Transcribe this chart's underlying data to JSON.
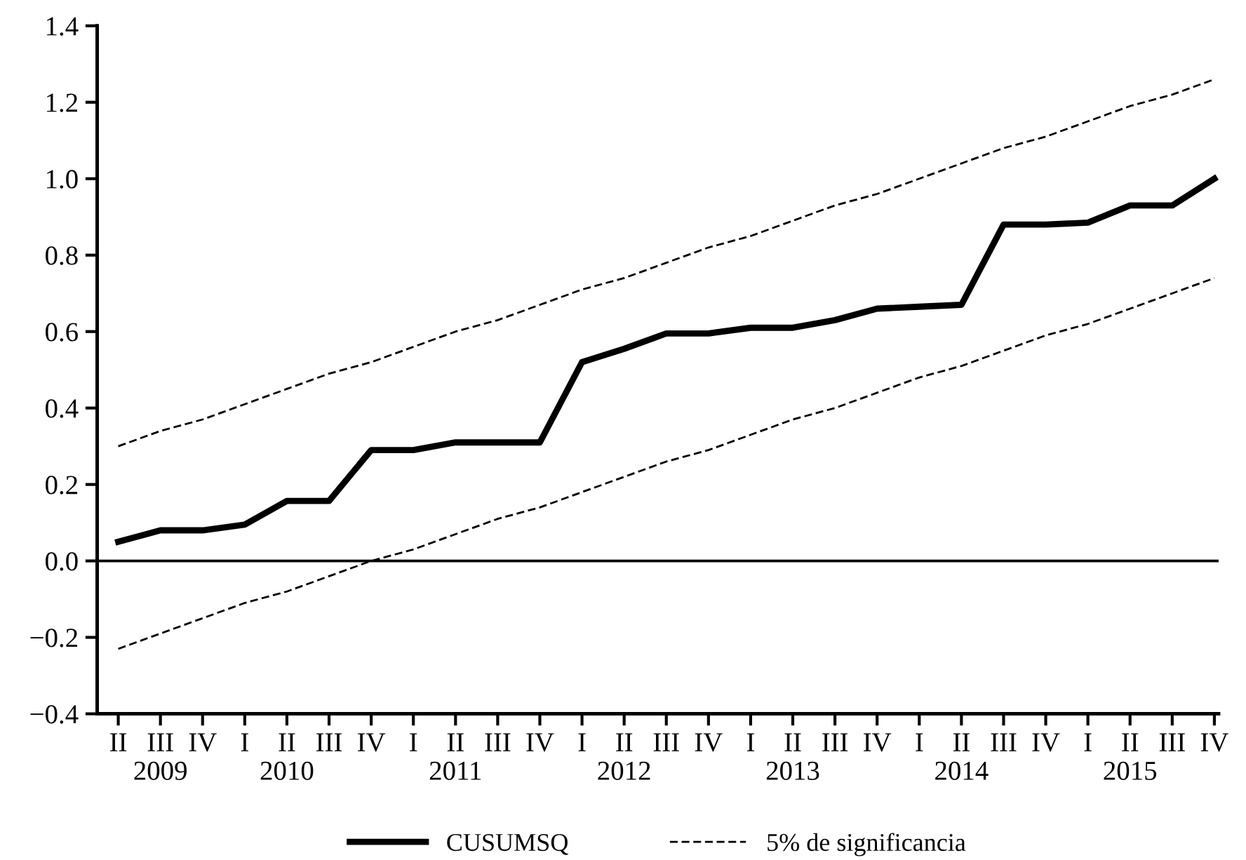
{
  "chart_data": {
    "type": "line",
    "categories": [
      "II",
      "III\n2009",
      "IV",
      "I",
      "II\n2010",
      "III",
      "IV",
      "I",
      "II\n2011",
      "III",
      "IV",
      "I",
      "II\n2012",
      "III",
      "IV",
      "I",
      "II\n2013",
      "III",
      "IV",
      "I",
      "II\n2014",
      "III",
      "IV",
      "I",
      "II\n2015",
      "III",
      "IV"
    ],
    "series": [
      {
        "name": "CUSUMSQ",
        "color": "#000000",
        "line_style": "solid",
        "values": [
          0.05,
          0.08,
          0.08,
          0.095,
          0.157,
          0.157,
          0.29,
          0.29,
          0.31,
          0.31,
          0.31,
          0.52,
          0.555,
          0.595,
          0.595,
          0.61,
          0.61,
          0.63,
          0.66,
          0.665,
          0.67,
          0.88,
          0.88,
          0.885,
          0.93,
          0.93,
          1.0
        ]
      },
      {
        "name": "5% de significancia",
        "color": "#000000",
        "line_style": "dashed",
        "values": [
          0.3,
          0.34,
          0.37,
          0.41,
          0.45,
          0.49,
          0.52,
          0.56,
          0.6,
          0.63,
          0.67,
          0.71,
          0.74,
          0.78,
          0.82,
          0.85,
          0.89,
          0.93,
          0.96,
          1.0,
          1.04,
          1.08,
          1.11,
          1.15,
          1.19,
          1.22,
          1.26
        ]
      },
      {
        "color": "#000000",
        "line_style": "dashed",
        "values": [
          -0.23,
          -0.19,
          -0.15,
          -0.11,
          -0.08,
          -0.04,
          0.0,
          0.03,
          0.07,
          0.11,
          0.14,
          0.18,
          0.22,
          0.26,
          0.29,
          0.33,
          0.37,
          0.4,
          0.44,
          0.48,
          0.51,
          0.55,
          0.59,
          0.62,
          0.66,
          0.7,
          0.74
        ]
      }
    ],
    "ylim": [
      -0.4,
      1.4
    ],
    "yticks": [
      {
        "value": -0.4,
        "label": "−0.4"
      },
      {
        "value": -0.2,
        "label": "−0.2"
      },
      {
        "value": 0,
        "label": "0.0"
      },
      {
        "value": 0.2,
        "label": "0.2"
      },
      {
        "value": 0.4,
        "label": "0.4"
      },
      {
        "value": 0.6,
        "label": "0.6"
      },
      {
        "value": 0.8,
        "label": "0.8"
      },
      {
        "value": 1.0,
        "label": "1.0"
      },
      {
        "value": 1.2,
        "label": "1.2"
      },
      {
        "value": 1.4,
        "label": "1.4"
      }
    ],
    "ref_lines": [
      {
        "axis": "y",
        "value": 0,
        "color": "#000000",
        "line_style": "solid"
      }
    ],
    "grid": false,
    "legend": "bottom"
  }
}
